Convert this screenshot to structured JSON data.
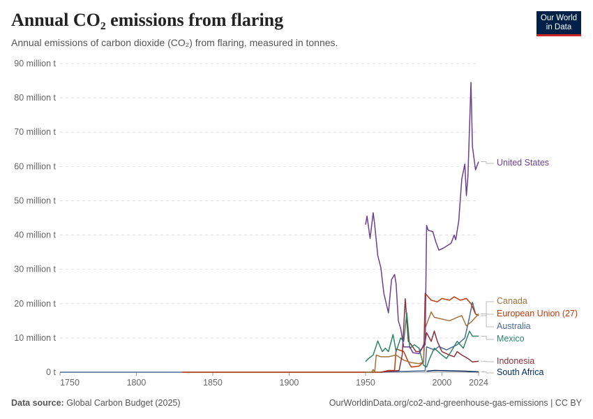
{
  "header": {
    "title": "Annual CO₂ emissions from flaring",
    "subtitle": "Annual emissions of carbon dioxide (CO₂) from flaring, measured in tonnes.",
    "logo": "Our World in Data"
  },
  "footer": {
    "source_label": "Data source:",
    "source": "Global Carbon Budget (2025)",
    "url": "OurWorldinData.org/co2-and-greenhouse-gas-emissions | CC BY"
  },
  "chart_data": {
    "type": "line",
    "title": "Annual CO₂ emissions from flaring",
    "xlabel": "",
    "ylabel": "",
    "xlim": [
      1750,
      2024
    ],
    "ylim": [
      0,
      90
    ],
    "grid": "horizontal dashed",
    "legend": "right-end labels",
    "x_ticks": [
      "1750",
      "1800",
      "1850",
      "1900",
      "1950",
      "2000",
      "2024"
    ],
    "y_ticks": [
      "0 t",
      "10 million t",
      "20 million t",
      "30 million t",
      "40 million t",
      "50 million t",
      "60 million t",
      "70 million t",
      "80 million t",
      "90 million t"
    ],
    "series": [
      {
        "name": "United States",
        "color": "#6D3E91",
        "points": [
          [
            1950,
            43
          ],
          [
            1951,
            45.5
          ],
          [
            1953,
            39
          ],
          [
            1955,
            46.5
          ],
          [
            1956,
            43
          ],
          [
            1958,
            34
          ],
          [
            1960,
            30.5
          ],
          [
            1962,
            23
          ],
          [
            1965,
            17.3
          ],
          [
            1967,
            27
          ],
          [
            1969,
            28.5
          ],
          [
            1970,
            25.7
          ],
          [
            1971.5,
            15
          ],
          [
            1973,
            12.8
          ],
          [
            1975,
            7.4
          ],
          [
            1979,
            7.4
          ],
          [
            1981,
            5.7
          ],
          [
            1985,
            5.4
          ],
          [
            1988,
            7.7
          ],
          [
            1989,
            8
          ],
          [
            1990,
            42.8
          ],
          [
            1991,
            41.4
          ],
          [
            1994,
            41
          ],
          [
            1996,
            38
          ],
          [
            1998,
            35.6
          ],
          [
            2001,
            36.2
          ],
          [
            2006,
            37.6
          ],
          [
            2008,
            40
          ],
          [
            2009,
            38.6
          ],
          [
            2011,
            44
          ],
          [
            2013,
            56.3
          ],
          [
            2015,
            60.7
          ],
          [
            2016,
            51.5
          ],
          [
            2017,
            57
          ],
          [
            2019,
            84.5
          ],
          [
            2020,
            65.8
          ],
          [
            2022,
            59
          ],
          [
            2024,
            61.4
          ]
        ]
      },
      {
        "name": "Canada",
        "color": "#A2733F",
        "points": [
          [
            1950,
            0
          ],
          [
            1954,
            0
          ],
          [
            1955,
            0.8
          ],
          [
            1956,
            0
          ],
          [
            1957,
            5
          ],
          [
            1960,
            4.5
          ],
          [
            1965,
            4.5
          ],
          [
            1970,
            5
          ],
          [
            1975,
            3.5
          ],
          [
            1980,
            2.8
          ],
          [
            1985,
            2.5
          ],
          [
            1988,
            3
          ],
          [
            1989,
            12.8
          ],
          [
            1993,
            17.6
          ],
          [
            1995,
            16
          ],
          [
            2000,
            15.5
          ],
          [
            2005,
            15
          ],
          [
            2010,
            16
          ],
          [
            2013,
            16.5
          ],
          [
            2016,
            13.5
          ],
          [
            2020,
            15
          ],
          [
            2024,
            17
          ]
        ]
      },
      {
        "name": "European Union (27)",
        "color": "#C1380A",
        "points": [
          [
            1830,
            0
          ],
          [
            1960,
            0
          ],
          [
            1965,
            0.5
          ],
          [
            1969,
            0.5
          ],
          [
            1970,
            6.8
          ],
          [
            1975,
            6
          ],
          [
            1978,
            3
          ],
          [
            1980,
            1.5
          ],
          [
            1985,
            1.8
          ],
          [
            1988,
            3
          ],
          [
            1989,
            23
          ],
          [
            1993,
            21
          ],
          [
            1997,
            20.5
          ],
          [
            2000,
            21.5
          ],
          [
            2005,
            21
          ],
          [
            2008,
            22
          ],
          [
            2012,
            21
          ],
          [
            2016,
            21.5
          ],
          [
            2019,
            20
          ],
          [
            2021,
            18
          ],
          [
            2022,
            17
          ],
          [
            2024,
            16.5
          ]
        ]
      },
      {
        "name": "Australia",
        "color": "#4C6A9C",
        "points": [
          [
            1750,
            0
          ],
          [
            1960,
            0
          ],
          [
            1980,
            0.3
          ],
          [
            1989,
            0.4
          ],
          [
            1990,
            7.4
          ],
          [
            1995,
            6.5
          ],
          [
            1998,
            7.5
          ],
          [
            2003,
            6.5
          ],
          [
            2010,
            8
          ],
          [
            2015,
            10
          ],
          [
            2018,
            16
          ],
          [
            2020,
            20.4
          ],
          [
            2022,
            17
          ],
          [
            2024,
            16.5
          ]
        ]
      },
      {
        "name": "Mexico",
        "color": "#2C8465",
        "points": [
          [
            1950,
            3.1
          ],
          [
            1952,
            4
          ],
          [
            1955,
            5
          ],
          [
            1958,
            9.1
          ],
          [
            1961,
            6
          ],
          [
            1963,
            7
          ],
          [
            1965,
            6
          ],
          [
            1968,
            11
          ],
          [
            1970,
            6
          ],
          [
            1973,
            10
          ],
          [
            1975,
            9
          ],
          [
            1977,
            17.3
          ],
          [
            1979,
            7
          ],
          [
            1982,
            8
          ],
          [
            1985,
            7
          ],
          [
            1988,
            2
          ],
          [
            1990,
            1.5
          ],
          [
            1992,
            4
          ],
          [
            1995,
            7
          ],
          [
            2000,
            5
          ],
          [
            2003,
            4
          ],
          [
            2006,
            6
          ],
          [
            2010,
            9
          ],
          [
            2014,
            7
          ],
          [
            2018,
            12
          ],
          [
            2020,
            10.5
          ],
          [
            2024,
            10.5
          ]
        ]
      },
      {
        "name": "Indonesia",
        "color": "#883039",
        "points": [
          [
            1960,
            0
          ],
          [
            1972,
            0.5
          ],
          [
            1974,
            5
          ],
          [
            1976,
            21.4
          ],
          [
            1978,
            9
          ],
          [
            1980,
            8
          ],
          [
            1983,
            6
          ],
          [
            1985,
            6
          ],
          [
            1987,
            7
          ],
          [
            1989,
            9
          ],
          [
            1990,
            11.5
          ],
          [
            1993,
            9
          ],
          [
            1995,
            12
          ],
          [
            1997,
            9
          ],
          [
            2000,
            6
          ],
          [
            2005,
            5
          ],
          [
            2008,
            4.5
          ],
          [
            2010,
            6
          ],
          [
            2013,
            5
          ],
          [
            2017,
            4
          ],
          [
            2020,
            3
          ],
          [
            2024,
            3.2
          ]
        ]
      },
      {
        "name": "South Africa",
        "color": "#00295B",
        "points": [
          [
            1990,
            0.3
          ],
          [
            1995,
            0.5
          ],
          [
            2005,
            0.4
          ],
          [
            2015,
            0.3
          ],
          [
            2024,
            0.1
          ]
        ]
      }
    ]
  }
}
